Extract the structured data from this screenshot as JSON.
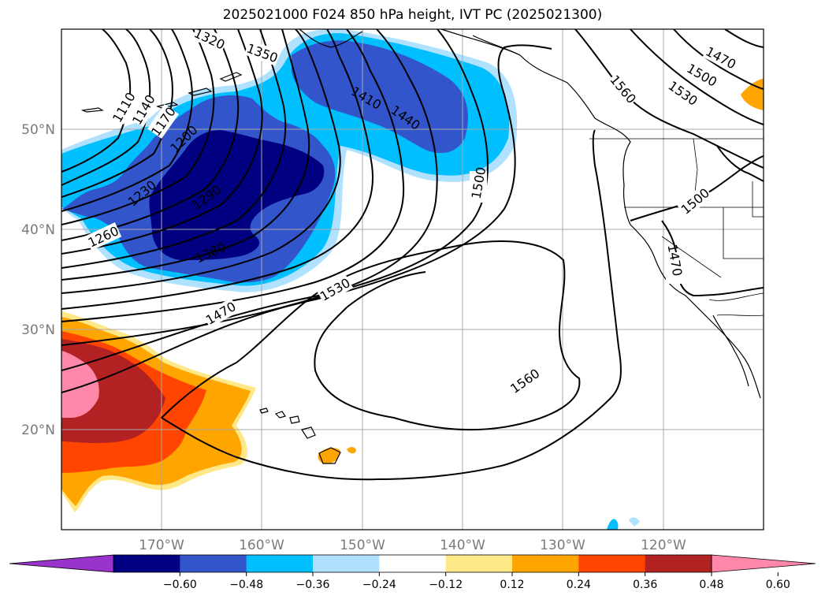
{
  "title": "2025021000 F024 850 hPa height, IVT PC (2025021300)",
  "lat_labels": [
    "50°N",
    "40°N",
    "30°N",
    "20°N"
  ],
  "lon_labels": [
    "170°W",
    "160°W",
    "150°W",
    "140°W",
    "130°W",
    "120°W"
  ],
  "contour_labels": [
    "1110",
    "1140",
    "1170",
    "1200",
    "1230",
    "1260",
    "1290",
    "1320",
    "1350",
    "1380",
    "1410",
    "1440",
    "1470",
    "1500",
    "1530",
    "1560",
    "1500",
    "1530",
    "1560",
    "1470",
    "1470",
    "1500",
    "1560"
  ],
  "colorbar": {
    "ticks": [
      "−0.60",
      "−0.48",
      "−0.36",
      "−0.24",
      "−0.12",
      "0.12",
      "0.24",
      "0.36",
      "0.48",
      "0.60"
    ],
    "colors": [
      "#9933cc",
      "#000080",
      "#3355cc",
      "#00bfff",
      "#b0e2ff",
      "#ffffff",
      "#ffe888",
      "#ffa500",
      "#ff4500",
      "#b22222",
      "#ff88aa"
    ]
  }
}
